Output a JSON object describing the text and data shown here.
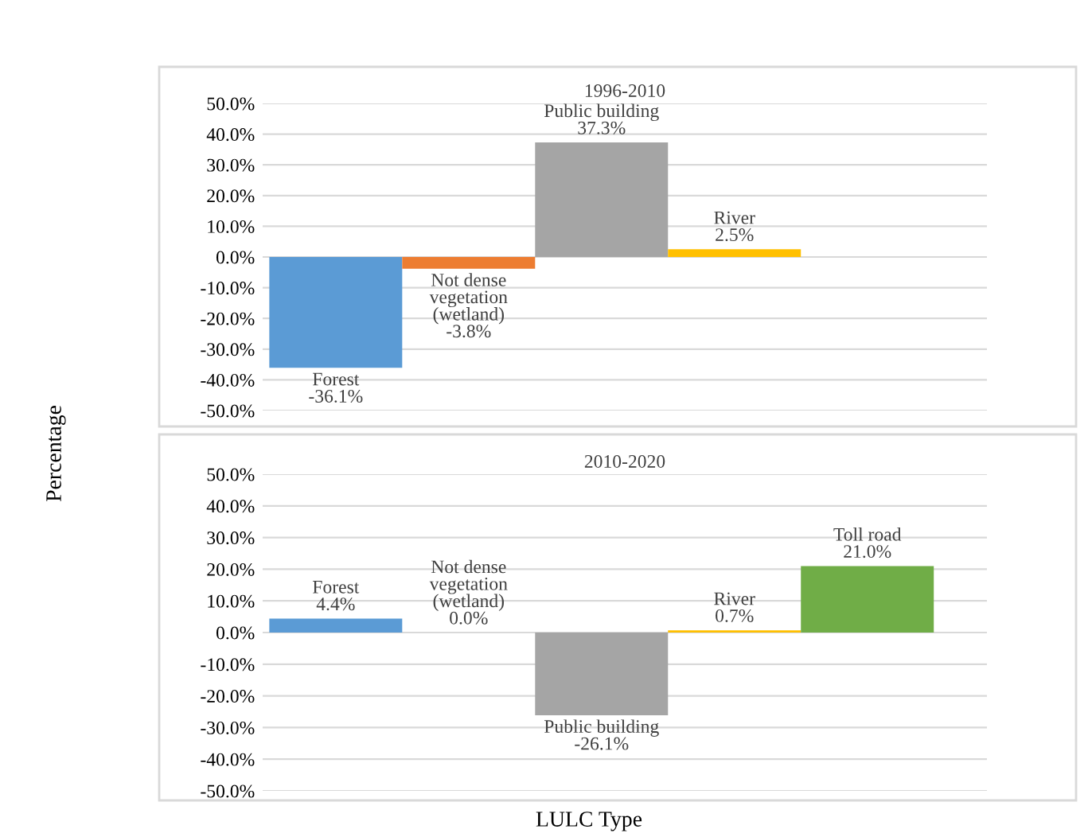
{
  "chart_data": [
    {
      "type": "bar",
      "title": "1996-2010",
      "ylabel": "Percentage",
      "categories": [
        "Forest",
        "Not dense\nvegetation\n(wetland)",
        "Public building",
        "River",
        null
      ],
      "values": [
        -36.1,
        -3.8,
        37.3,
        2.5,
        null
      ],
      "colors": [
        "#5b9bd5",
        "#ed7d31",
        "#a5a5a5",
        "#ffc000",
        "#70ad47"
      ],
      "value_labels": [
        "-36.1%",
        "-3.8%",
        "37.3%",
        "2.5%",
        null
      ],
      "ylim": [
        -50,
        50
      ],
      "yticks": [
        {
          "value": -50,
          "label": "-50.0%"
        },
        {
          "value": -40,
          "label": "-40.0%"
        },
        {
          "value": -30,
          "label": "-30.0%"
        },
        {
          "value": -20,
          "label": "-20.0%"
        },
        {
          "value": -10,
          "label": "-10.0%"
        },
        {
          "value": 0,
          "label": "0.0%"
        },
        {
          "value": 10,
          "label": "10.0%"
        },
        {
          "value": 20,
          "label": "20.0%"
        },
        {
          "value": 30,
          "label": "30.0%"
        },
        {
          "value": 40,
          "label": "40.0%"
        },
        {
          "value": 50,
          "label": "50.0%"
        }
      ],
      "grid": "y",
      "tick_labels": "y"
    },
    {
      "type": "bar",
      "title": "2010-2020",
      "xlabel": "LULC Type",
      "categories": [
        "Forest",
        "Not dense\nvegetation\n(wetland)",
        "Public building",
        "River",
        "Toll road"
      ],
      "values": [
        4.4,
        0.0,
        -26.1,
        0.7,
        21.0
      ],
      "colors": [
        "#5b9bd5",
        "#ed7d31",
        "#a5a5a5",
        "#ffc000",
        "#70ad47"
      ],
      "value_labels": [
        "4.4%",
        "0.0%",
        "-26.1%",
        "0.7%",
        "21.0%"
      ],
      "ylim": [
        -50,
        50
      ],
      "yticks": [
        {
          "value": -50,
          "label": "-50.0%"
        },
        {
          "value": -40,
          "label": "-40.0%"
        },
        {
          "value": -30,
          "label": "-30.0%"
        },
        {
          "value": -20,
          "label": "-20.0%"
        },
        {
          "value": -10,
          "label": "-10.0%"
        },
        {
          "value": 0,
          "label": "0.0%"
        },
        {
          "value": 10,
          "label": "10.0%"
        },
        {
          "value": 20,
          "label": "20.0%"
        },
        {
          "value": 30,
          "label": "30.0%"
        },
        {
          "value": 40,
          "label": "40.0%"
        },
        {
          "value": 50,
          "label": "50.0%"
        }
      ],
      "grid": "y",
      "tick_labels": "y"
    }
  ]
}
